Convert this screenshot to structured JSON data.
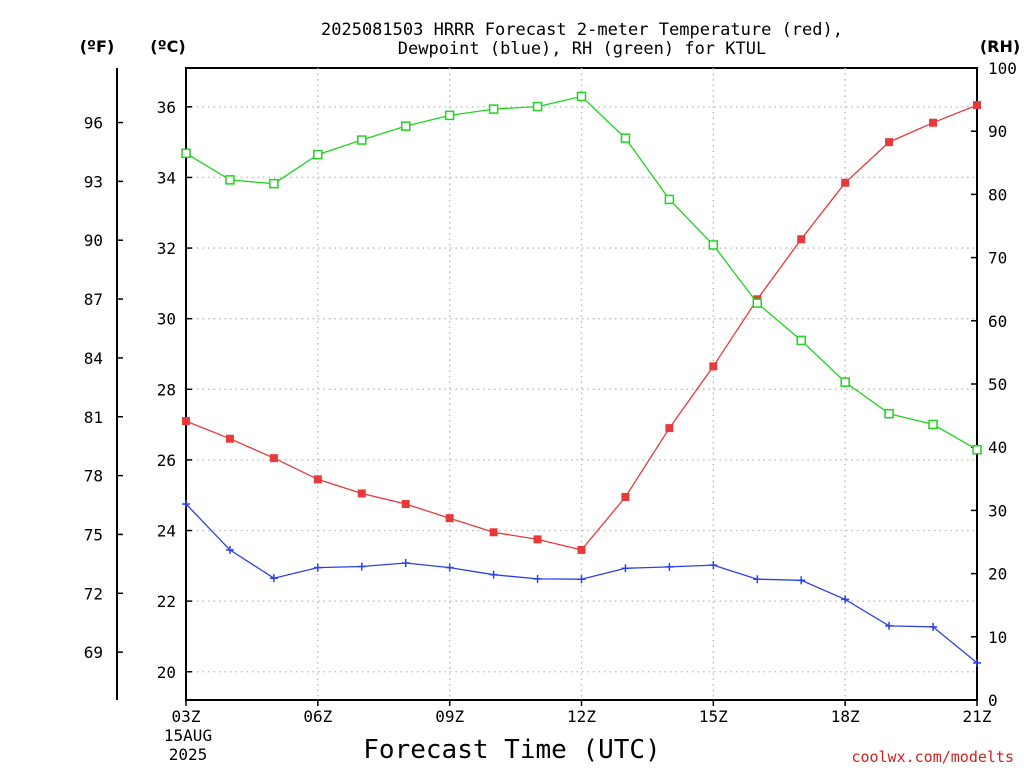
{
  "chart_data": {
    "type": "line",
    "title_line1": "2025081503 HRRR Forecast 2-meter Temperature (red),",
    "title_line2": "Dewpoint (blue), RH (green) for KTUL",
    "xlabel": "Forecast Time (UTC)",
    "x_ticks": [
      "03Z",
      "06Z",
      "09Z",
      "12Z",
      "15Z",
      "18Z",
      "21Z"
    ],
    "x_tick_hours": [
      3,
      6,
      9,
      12,
      15,
      18,
      21
    ],
    "date_label_line1": "15AUG",
    "date_label_line2": "2025",
    "x": [
      3,
      4,
      5,
      6,
      7,
      8,
      9,
      10,
      11,
      12,
      13,
      14,
      15,
      16,
      17,
      18,
      19,
      20,
      21
    ],
    "xlim": [
      3,
      21
    ],
    "left_axis_f": {
      "label": "(ºF)",
      "ticks": [
        69,
        72,
        75,
        78,
        81,
        84,
        87,
        90,
        93,
        96
      ]
    },
    "left_axis_c": {
      "label": "(ºC)",
      "ticks": [
        20,
        22,
        24,
        26,
        28,
        30,
        32,
        34,
        36
      ],
      "ylim": [
        19.2,
        37.1
      ]
    },
    "right_axis": {
      "label": "(RH)",
      "ticks": [
        0,
        10,
        20,
        30,
        40,
        50,
        60,
        70,
        80,
        90,
        100
      ],
      "ylim": [
        0,
        100
      ]
    },
    "grid": true,
    "series": [
      {
        "name": "Temperature",
        "color": "#e83a3a",
        "marker": "filled-square",
        "axis": "celsius",
        "values": [
          27.1,
          26.6,
          26.05,
          25.45,
          25.05,
          24.75,
          24.35,
          23.95,
          23.75,
          23.45,
          24.95,
          26.9,
          28.65,
          30.55,
          32.25,
          33.85,
          35.0,
          35.55,
          36.05
        ]
      },
      {
        "name": "Dewpoint",
        "color": "#2a40e8",
        "marker": "plus",
        "axis": "celsius",
        "values": [
          24.75,
          23.45,
          22.65,
          22.95,
          22.98,
          23.08,
          22.95,
          22.75,
          22.63,
          22.62,
          22.93,
          22.97,
          23.02,
          22.62,
          22.59,
          22.05,
          21.3,
          21.27,
          20.25
        ]
      },
      {
        "name": "RH",
        "color": "#1ed41e",
        "marker": "open-square",
        "axis": "rh",
        "values": [
          86.5,
          82.3,
          81.7,
          86.3,
          88.6,
          90.8,
          92.5,
          93.5,
          93.9,
          95.5,
          88.9,
          79.2,
          72.0,
          62.8,
          56.9,
          50.3,
          45.3,
          43.6,
          39.6
        ]
      }
    ],
    "watermark": "coolwx.com/modelts"
  }
}
